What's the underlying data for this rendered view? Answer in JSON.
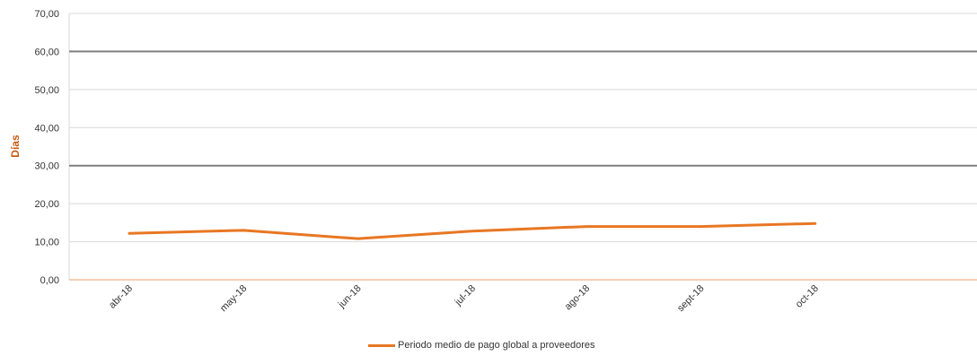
{
  "chart_data": {
    "type": "line",
    "categories": [
      "abr-18",
      "may-18",
      "jun-18",
      "jul-18",
      "ago-18",
      "sept-18",
      "oct-18"
    ],
    "series": [
      {
        "name": "Periodo medio de pago global a proveedores",
        "values": [
          12.2,
          13.0,
          10.8,
          12.8,
          14.0,
          14.0,
          14.8
        ],
        "color": "#E87722"
      }
    ],
    "ylabel": "Días",
    "ylim": [
      0,
      70
    ],
    "y_ticks": [
      "0,00",
      "10,00",
      "20,00",
      "30,00",
      "40,00",
      "50,00",
      "60,00",
      "70,00"
    ],
    "reference_lines": [
      30,
      60
    ],
    "grid": true,
    "legend": "bottom"
  },
  "colors": {
    "series": "#E87722",
    "ylabel": "#C55A11",
    "grid": "#D9D9D9",
    "reference": "#7F7F7F",
    "axis": "#E8A06A"
  }
}
